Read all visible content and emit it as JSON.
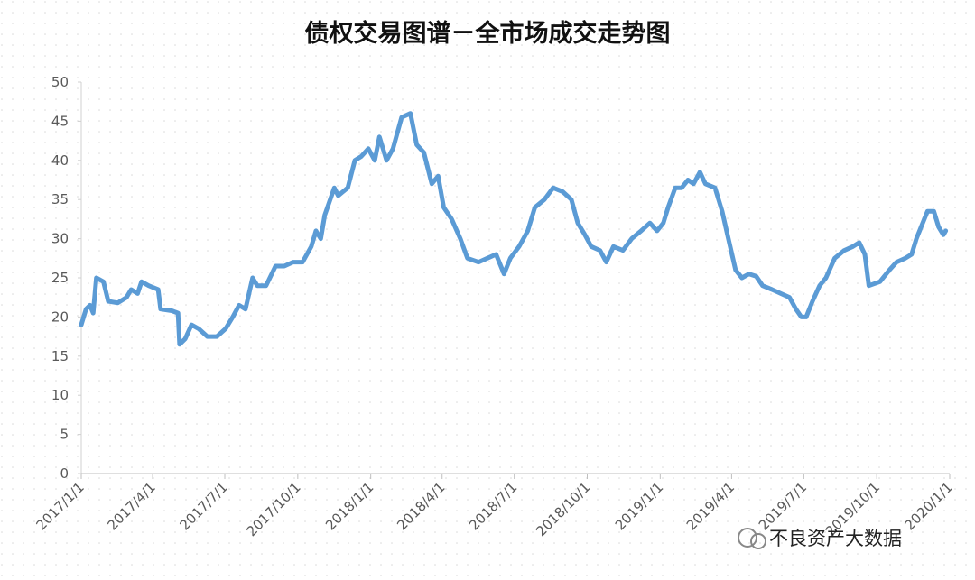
{
  "chart_data": {
    "type": "line",
    "title": "债权交易图谱－全市场成交走势图",
    "watermark": "不良资产大数据",
    "color": "#5b9bd5",
    "grid": false,
    "xlim": [
      "2017/1/1",
      "2020/1/1"
    ],
    "xticks": [
      "2017/1/1",
      "2017/4/1",
      "2017/7/1",
      "2017/10/1",
      "2018/1/1",
      "2018/4/1",
      "2018/7/1",
      "2018/10/1",
      "2019/1/1",
      "2019/4/1",
      "2019/7/1",
      "2019/10/1",
      "2020/1/1"
    ],
    "ylim": [
      0,
      50
    ],
    "yticks": [
      0,
      5,
      10,
      15,
      20,
      25,
      30,
      35,
      40,
      45,
      50
    ],
    "x": [
      "2017/1/1",
      "2017/1/7",
      "2017/1/12",
      "2017/1/16",
      "2017/1/20",
      "2017/1/29",
      "2017/2/4",
      "2017/2/16",
      "2017/2/27",
      "2017/3/5",
      "2017/3/13",
      "2017/3/18",
      "2017/3/27",
      "2017/4/8",
      "2017/4/11",
      "2017/4/25",
      "2017/5/3",
      "2017/5/5",
      "2017/5/12",
      "2017/5/20",
      "2017/5/29",
      "2017/6/9",
      "2017/6/21",
      "2017/7/2",
      "2017/7/11",
      "2017/7/19",
      "2017/7/27",
      "2017/8/5",
      "2017/8/11",
      "2017/8/22",
      "2017/9/3",
      "2017/9/14",
      "2017/9/25",
      "2017/10/7",
      "2017/10/18",
      "2017/10/24",
      "2017/10/30",
      "2017/11/4",
      "2017/11/16",
      "2017/11/21",
      "2017/12/3",
      "2017/12/12",
      "2017/12/20",
      "2017/12/29",
      "2018/1/6",
      "2018/1/12",
      "2018/1/21",
      "2018/1/29",
      "2018/2/9",
      "2018/2/20",
      "2018/2/28",
      "2018/3/9",
      "2018/3/19",
      "2018/3/27",
      "2018/4/3",
      "2018/4/13",
      "2018/4/24",
      "2018/5/3",
      "2018/5/17",
      "2018/5/28",
      "2018/6/8",
      "2018/6/18",
      "2018/6/26",
      "2018/7/7",
      "2018/7/18",
      "2018/7/27",
      "2018/8/8",
      "2018/8/19",
      "2018/8/31",
      "2018/9/11",
      "2018/9/19",
      "2018/9/28",
      "2018/10/6",
      "2018/10/17",
      "2018/10/25",
      "2018/11/3",
      "2018/11/15",
      "2018/11/26",
      "2018/12/8",
      "2018/12/19",
      "2018/12/28",
      "2019/1/5",
      "2019/1/11",
      "2019/1/20",
      "2019/1/28",
      "2019/2/5",
      "2019/2/12",
      "2019/2/20",
      "2019/2/27",
      "2019/3/11",
      "2019/3/20",
      "2019/3/29",
      "2019/4/6",
      "2019/4/14",
      "2019/4/23",
      "2019/5/2",
      "2019/5/10",
      "2019/5/22",
      "2019/6/2",
      "2019/6/13",
      "2019/6/21",
      "2019/6/28",
      "2019/7/4",
      "2019/7/12",
      "2019/7/21",
      "2019/7/29",
      "2019/8/9",
      "2019/8/21",
      "2019/9/1",
      "2019/9/9",
      "2019/9/16",
      "2019/9/21",
      "2019/10/5",
      "2019/10/17",
      "2019/10/26",
      "2019/11/6",
      "2019/11/14",
      "2019/11/20",
      "2019/11/28",
      "2019/12/4",
      "2019/12/12",
      "2019/12/18",
      "2019/12/24",
      "2019/12/27"
    ],
    "values": [
      19,
      21,
      21.5,
      20.5,
      25,
      24.5,
      22,
      21.8,
      22.5,
      23.5,
      23,
      24.5,
      24,
      23.5,
      21,
      20.8,
      20.5,
      16.5,
      17.2,
      19,
      18.5,
      17.5,
      17.5,
      18.5,
      20,
      21.5,
      21,
      25,
      24,
      24,
      26.5,
      26.5,
      27,
      27,
      29,
      31,
      30,
      33,
      36.5,
      35.5,
      36.5,
      40,
      40.5,
      41.5,
      40,
      43,
      40,
      41.5,
      45.5,
      46,
      42,
      41,
      37,
      38,
      34,
      32.5,
      30,
      27.5,
      27,
      27.5,
      28,
      25.5,
      27.5,
      29,
      31,
      34,
      35,
      36.5,
      36,
      35,
      32,
      30.5,
      29,
      28.5,
      27,
      29,
      28.5,
      30,
      31,
      32,
      31,
      32,
      34,
      36.5,
      36.5,
      37.5,
      37,
      38.5,
      37,
      36.5,
      33.5,
      29.5,
      26,
      25,
      25.5,
      25.2,
      24,
      23.5,
      23,
      22.5,
      21,
      20,
      20,
      22,
      24,
      25,
      27.5,
      28.5,
      29,
      29.5,
      28,
      24,
      24.5,
      26,
      27,
      27.5,
      28,
      30,
      32,
      33.5,
      33.5,
      31.5,
      30.5,
      31
    ]
  }
}
